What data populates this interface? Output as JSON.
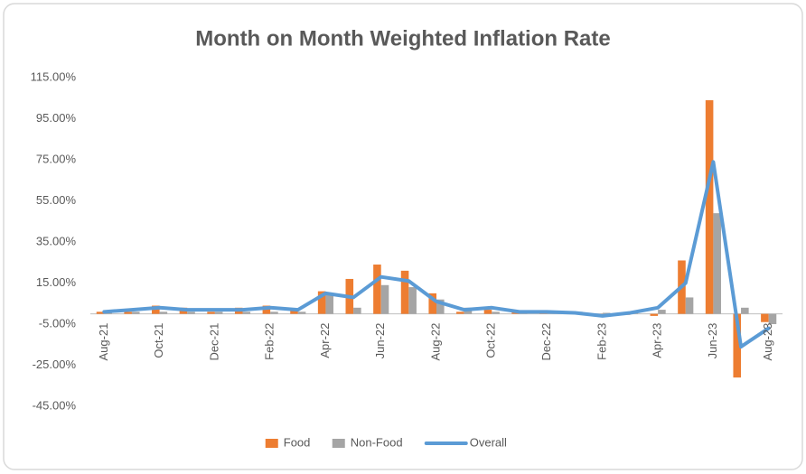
{
  "chart_data": {
    "type": "bar-line",
    "title": "Month on Month Weighted Inflation Rate",
    "categories": [
      "Aug-21",
      null,
      "Oct-21",
      null,
      "Dec-21",
      null,
      "Feb-22",
      null,
      "Apr-22",
      null,
      "Jun-22",
      null,
      "Aug-22",
      null,
      "Oct-22",
      null,
      "Dec-22",
      null,
      "Feb-23",
      null,
      "Apr-23",
      null,
      "Jun-23",
      null,
      "Aug-23"
    ],
    "series": [
      {
        "name": "Food",
        "type": "bar",
        "color": "#ed7d31",
        "values": [
          1,
          1,
          4,
          3,
          1,
          3,
          4,
          2,
          11,
          17,
          24,
          21,
          10,
          1,
          2,
          1,
          1,
          0.5,
          -1,
          -0.5,
          -1,
          26,
          104,
          -31,
          -4
        ]
      },
      {
        "name": "Non-Food",
        "type": "bar",
        "color": "#a5a5a5",
        "values": [
          1,
          1,
          1,
          1,
          1,
          1,
          1,
          1,
          10,
          3,
          14,
          13,
          7,
          3,
          1,
          1,
          1,
          1,
          0.5,
          0.5,
          2,
          8,
          49,
          3,
          -5
        ]
      },
      {
        "name": "Overall",
        "type": "line",
        "color": "#5b9bd5",
        "values": [
          1,
          2,
          3,
          2,
          2,
          2,
          3,
          2,
          10,
          8,
          18,
          16,
          6,
          2,
          3,
          1,
          1,
          0.5,
          -1,
          0.5,
          3,
          15,
          74,
          -16,
          -7
        ]
      }
    ],
    "ylim": [
      -45,
      115
    ],
    "yticks": [
      {
        "value": 115,
        "label": "115.00%"
      },
      {
        "value": 95,
        "label": "95.00%"
      },
      {
        "value": 75,
        "label": "75.00%"
      },
      {
        "value": 55,
        "label": "55.00%"
      },
      {
        "value": 35,
        "label": "35.00%"
      },
      {
        "value": 15,
        "label": "15.00%"
      },
      {
        "value": -5,
        "label": "-5.00%"
      },
      {
        "value": -25,
        "label": "-25.00%"
      },
      {
        "value": -45,
        "label": "-45.00%"
      }
    ],
    "grid": false,
    "legend": "bottom"
  }
}
